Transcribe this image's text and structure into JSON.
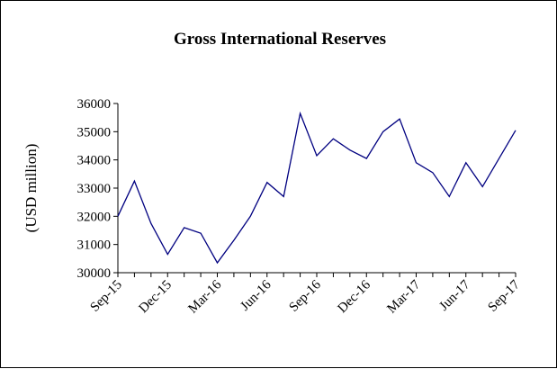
{
  "chart_data": {
    "type": "line",
    "title": "Gross International Reserves",
    "xlabel": "",
    "ylabel": "(USD million)",
    "ylim": [
      30000,
      36000
    ],
    "yticks": [
      30000,
      31000,
      32000,
      33000,
      34000,
      35000,
      36000
    ],
    "xtick_labels": [
      "Sep-15",
      "Dec-15",
      "Mar-16",
      "Jun-16",
      "Sep-16",
      "Dec-16",
      "Mar-17",
      "Jun-17",
      "Sep-17"
    ],
    "x": [
      "Sep-15",
      "Oct-15",
      "Nov-15",
      "Dec-15",
      "Jan-16",
      "Feb-16",
      "Mar-16",
      "Apr-16",
      "May-16",
      "Jun-16",
      "Jul-16",
      "Aug-16",
      "Sep-16",
      "Oct-16",
      "Nov-16",
      "Dec-16",
      "Jan-17",
      "Feb-17",
      "Mar-17",
      "Apr-17",
      "May-17",
      "Jun-17",
      "Jul-17",
      "Aug-17",
      "Sep-17"
    ],
    "series": [
      {
        "values": [
          32000,
          33250,
          31750,
          30650,
          31600,
          31400,
          30350,
          31150,
          32000,
          33200,
          32700,
          35650,
          34150,
          34750,
          34350,
          34050,
          35000,
          35450,
          33900,
          33550,
          32700,
          33900,
          33050,
          34050,
          35050
        ]
      }
    ],
    "line_color": "#000080",
    "grid": false,
    "legend": "none"
  }
}
